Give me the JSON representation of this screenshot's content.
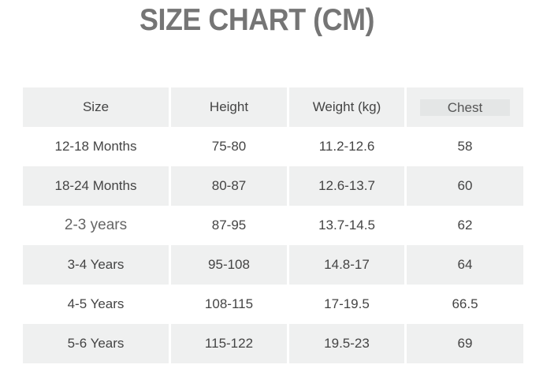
{
  "title": "SIZE CHART (CM)",
  "table": {
    "headers": [
      "Size",
      "Height",
      "Weight (kg)",
      "Chest"
    ],
    "rows": [
      [
        "12-18 Months",
        "75-80",
        "11.2-12.6",
        "58"
      ],
      [
        "18-24 Months",
        "80-87",
        "12.6-13.7",
        "60"
      ],
      [
        "2-3 years",
        "87-95",
        "13.7-14.5",
        "62"
      ],
      [
        "3-4 Years",
        "95-108",
        "14.8-17",
        "64"
      ],
      [
        "4-5 Years",
        "108-115",
        "17-19.5",
        "66.5"
      ],
      [
        "5-6 Years",
        "115-122",
        "19.5-23",
        "69"
      ]
    ]
  },
  "colors": {
    "row_shade": "#eff0f0",
    "title": "#757575"
  }
}
